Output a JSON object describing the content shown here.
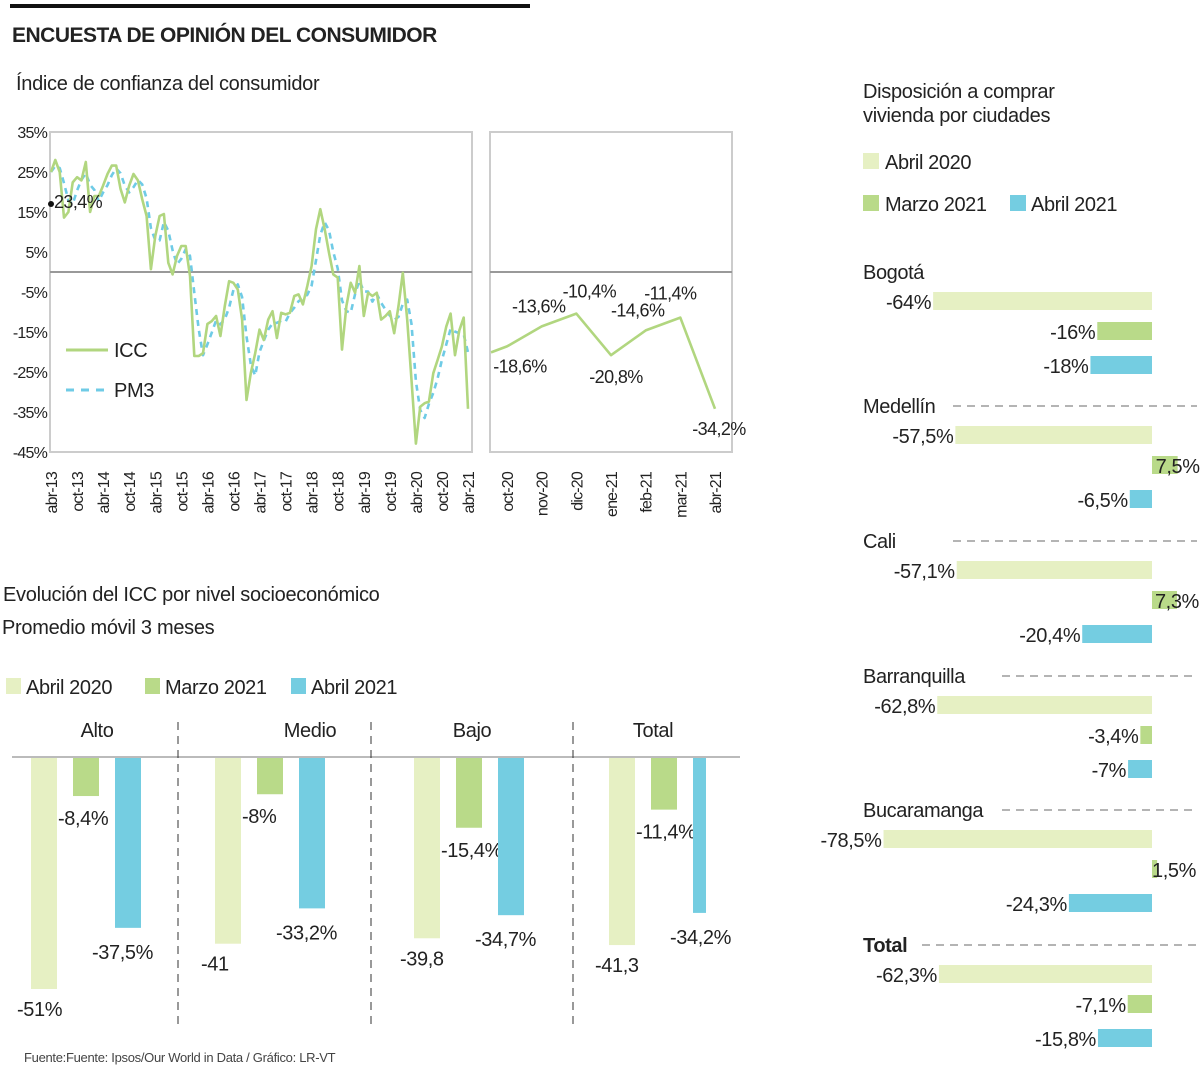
{
  "header": {
    "title": "ENCUESTA DE OPINIÓN DEL CONSUMIDOR",
    "source": "Fuente:Fuente: Ipsos/Our World in Data   / Gráfico: LR-VT"
  },
  "colors": {
    "abril_2020": "#e6f0c3",
    "marzo_2021": "#b9da89",
    "abril_2021": "#74cde1",
    "icc": "#b1d67f",
    "pm3": "#6fcbe6"
  },
  "chart_data": [
    {
      "type": "line",
      "title": "Índice de confianza del consumidor",
      "ylim": [
        -45,
        35
      ],
      "y_ticks": [
        "35%",
        "25%",
        "15%",
        "5%",
        "-5%",
        "-15%",
        "-25%",
        "-35%",
        "-45%"
      ],
      "y_tick_values": [
        35,
        25,
        15,
        5,
        -5,
        -15,
        -25,
        -35,
        -45
      ],
      "x_tick_labels": [
        "abr-13",
        "oct-13",
        "abr-14",
        "oct-14",
        "abr-15",
        "oct-15",
        "abr-16",
        "oct-16",
        "abr-17",
        "oct-17",
        "abr-18",
        "oct-18",
        "abr-19",
        "oct-19",
        "abr-20",
        "oct-20",
        "abr-21"
      ],
      "x_start": "abr-13",
      "x_end": "abr-21",
      "frequency": "monthly",
      "annotation": "23,4%",
      "legend": [
        "ICC",
        "PM3"
      ],
      "legend_placement": "left",
      "series": [
        {
          "name": "ICC",
          "style": "solid",
          "values": [
            25,
            28,
            25,
            13.6,
            15,
            22.4,
            23.7,
            22.9,
            27.5,
            15,
            19,
            19,
            21.6,
            24.5,
            26.6,
            26.6,
            20.8,
            17.4,
            21.6,
            24.5,
            22.9,
            18.2,
            14,
            0.7,
            9,
            14,
            14.5,
            2.3,
            -0.6,
            4,
            6.5,
            6.5,
            -1,
            -21,
            -21,
            -20.3,
            -13,
            -12.3,
            -11,
            -16,
            -8.5,
            -2.3,
            -2.7,
            -4.4,
            -11.9,
            -32,
            -25.3,
            -20.3,
            -14.4,
            -17,
            -11.9,
            -9.8,
            -16.5,
            -10.2,
            -10.6,
            -10.2,
            -6,
            -5.6,
            -8.1,
            -3.5,
            1.5,
            10.7,
            15.7,
            10.7,
            4.8,
            -0.6,
            -1.4,
            -19.4,
            -8.5,
            -2.7,
            -5.2,
            1.5,
            -11,
            -5.2,
            -6,
            -5.2,
            -11.9,
            -11,
            -9.8,
            -15.3,
            -8.5,
            -0.2,
            -11.9,
            -27,
            -42.9,
            -33.7,
            -32.8,
            -32.4,
            -25.3,
            -22,
            -18.6,
            -13.6,
            -10.4,
            -20.8,
            -14.6,
            -11.4,
            -34.2
          ]
        },
        {
          "name": "PM3",
          "style": "dashed",
          "values": [
            25,
            26.5,
            26,
            22.2,
            17.9,
            17,
            20.4,
            23,
            24.7,
            21.8,
            20.5,
            17.7,
            19.9,
            21.7,
            24.2,
            25.9,
            24.7,
            21.6,
            19.9,
            21.2,
            23,
            21.9,
            18.4,
            11,
            7.9,
            7.9,
            12.5,
            10.3,
            5.4,
            1.9,
            3.3,
            5.7,
            4,
            -5.2,
            -14.3,
            -20.8,
            -18.1,
            -15.2,
            -12.1,
            -13.1,
            -11.8,
            -8.9,
            -4.5,
            -3.1,
            -6.3,
            -16.1,
            -23.1,
            -25.9,
            -20,
            -17.2,
            -14.4,
            -12.9,
            -12.7,
            -12.2,
            -12.4,
            -10.3,
            -8.9,
            -7.3,
            -6.6,
            -5.7,
            -3.4,
            2.9,
            9.3,
            12.4,
            10.4,
            5,
            0.9,
            -7.1,
            -9.8,
            -10.2,
            -5.5,
            -2.1,
            -4.9,
            -4.9,
            -7.4,
            -5.5,
            -7.7,
            -9.4,
            -10.9,
            -12,
            -11.2,
            -8,
            -6.9,
            -13,
            -27.3,
            -34.5,
            -36.5,
            -33,
            -30.2,
            -26.6,
            -22,
            -18.1,
            -14.2,
            -14.9,
            -15.3,
            -15.6,
            -20.1
          ]
        }
      ]
    },
    {
      "type": "line",
      "ylim": [
        -45,
        35
      ],
      "categories": [
        "oct-20",
        "nov-20",
        "dic-20",
        "ene-21",
        "feb-21",
        "mar-21",
        "abr-21"
      ],
      "values": [
        -18.6,
        -13.6,
        -10.4,
        -20.8,
        -14.6,
        -11.4,
        -34.2
      ],
      "data_labels": [
        "-18,6%",
        "-13,6%",
        "-10,4%",
        "-20,8%",
        "-14,6%",
        "-11,4%",
        "-34,2%"
      ]
    },
    {
      "type": "bar",
      "title": "Evolución del ICC por nivel socioeconómico",
      "subtitle": "Promedio móvil 3 meses",
      "legend": [
        "Abril 2020",
        "Marzo 2021",
        "Abril 2021"
      ],
      "legend_placement": "top-left",
      "categories": [
        "Alto",
        "Medio",
        "Bajo",
        "Total"
      ],
      "series": [
        {
          "name": "Abril 2020",
          "values": [
            -51,
            -41,
            -39.8,
            -41.3
          ],
          "labels": [
            "-51%",
            "-41",
            "-39,8",
            "-41,3"
          ]
        },
        {
          "name": "Marzo 2021",
          "values": [
            -8.4,
            -8,
            -15.4,
            -11.4
          ],
          "labels": [
            "-8,4%",
            "-8%",
            "-15,4%",
            "-11,4%"
          ]
        },
        {
          "name": "Abril 2021",
          "values": [
            -37.5,
            -33.2,
            -34.7,
            -34.2
          ],
          "labels": [
            "-37,5%",
            "-33,2%",
            "-34,7%",
            "-34,2%"
          ]
        }
      ]
    },
    {
      "type": "bar",
      "orientation": "horizontal",
      "title": "Disposición a comprar vivienda por ciudades",
      "legend": [
        "Abril 2020",
        "Marzo 2021",
        "Abril 2021"
      ],
      "legend_placement": "top",
      "categories": [
        "Bogotá",
        "Medellín",
        "Cali",
        "Barranquilla",
        "Bucaramanga",
        "Total"
      ],
      "series": [
        {
          "name": "Abril 2020",
          "values": [
            -64,
            -57.5,
            -57.1,
            -62.8,
            -78.5,
            -62.3
          ],
          "labels": [
            "-64%",
            "-57,5%",
            "-57,1%",
            "-62,8%",
            "-78,5%",
            "-62,3%"
          ]
        },
        {
          "name": "Marzo 2021",
          "values": [
            -16,
            7.5,
            7.3,
            -3.4,
            1.5,
            -7.1
          ],
          "labels": [
            "-16%",
            "7,5%",
            "7,3%",
            "-3,4%",
            "1,5%",
            "-7,1%"
          ]
        },
        {
          "name": "Abril 2021",
          "values": [
            -18,
            -6.5,
            -20.4,
            -7,
            -24.3,
            -15.8
          ],
          "labels": [
            "-18%",
            "-6,5%",
            "-20,4%",
            "-7%",
            "-24,3%",
            "-15,8%"
          ]
        }
      ]
    }
  ]
}
